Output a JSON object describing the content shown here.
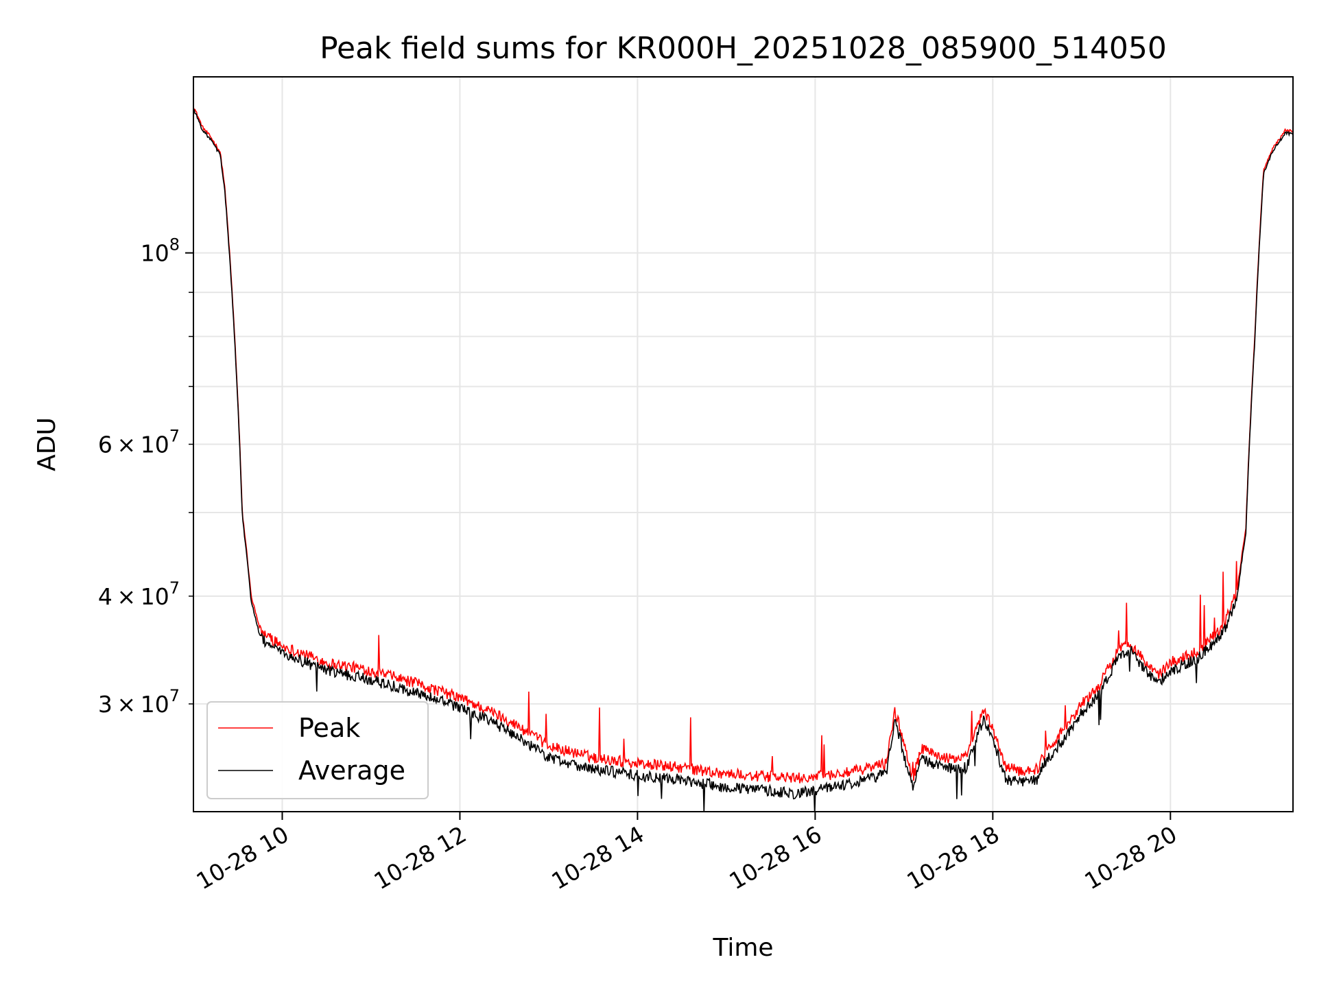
{
  "chart_data": {
    "type": "line",
    "title": "Peak field sums for KR000H_20251028_085900_514050",
    "xlabel": "Time",
    "ylabel": "ADU",
    "yscale": "log",
    "xlim_hours": [
      9.0,
      21.38
    ],
    "ylim": [
      22500000,
      160000000
    ],
    "grid": true,
    "legend_position": "lower-left",
    "x_ticks": [
      {
        "value": 10,
        "label": "10-28 10"
      },
      {
        "value": 12,
        "label": "10-28 12"
      },
      {
        "value": 14,
        "label": "10-28 14"
      },
      {
        "value": 16,
        "label": "10-28 16"
      },
      {
        "value": 18,
        "label": "10-28 18"
      },
      {
        "value": 20,
        "label": "10-28 20"
      }
    ],
    "y_major_ticks": [
      {
        "value": 100000000,
        "base": "10",
        "exp": "8"
      }
    ],
    "y_minor_ticks": [
      {
        "value": 30000000,
        "mant": "3",
        "base": "10",
        "exp": "7"
      },
      {
        "value": 40000000,
        "mant": "4",
        "base": "10",
        "exp": "7"
      },
      {
        "value": 50000000
      },
      {
        "value": 60000000,
        "mant": "6",
        "base": "10",
        "exp": "7"
      },
      {
        "value": 70000000
      },
      {
        "value": 80000000
      },
      {
        "value": 90000000
      }
    ],
    "x_hours": [
      9.0,
      9.1,
      9.2,
      9.3,
      9.35,
      9.45,
      9.55,
      9.65,
      9.75,
      10.0,
      10.5,
      11.0,
      11.5,
      12.0,
      12.5,
      13.0,
      13.5,
      14.0,
      14.5,
      15.0,
      15.5,
      15.8,
      16.0,
      16.4,
      16.8,
      16.9,
      17.0,
      17.1,
      17.2,
      17.5,
      17.7,
      17.9,
      18.0,
      18.15,
      18.3,
      18.5,
      18.6,
      18.8,
      19.0,
      19.2,
      19.4,
      19.55,
      19.7,
      19.85,
      20.0,
      20.3,
      20.6,
      20.75,
      20.85,
      20.95,
      21.05,
      21.15,
      21.3,
      21.38
    ],
    "series": [
      {
        "name": "Peak",
        "color": "#ff0000",
        "values": [
          148000000,
          140000000,
          136000000,
          131000000,
          120000000,
          85000000,
          50000000,
          40000000,
          36500000,
          35000000,
          33500000,
          32800000,
          31700000,
          30500000,
          28900000,
          26800000,
          26000000,
          25600000,
          25300000,
          24900000,
          24700000,
          24600000,
          24700000,
          25000000,
          25600000,
          29500000,
          27000000,
          24600000,
          26600000,
          25900000,
          26000000,
          29500000,
          28000000,
          25300000,
          25100000,
          25200000,
          26500000,
          28000000,
          30000000,
          31500000,
          34500000,
          35300000,
          33700000,
          32300000,
          33500000,
          34500000,
          37000000,
          40500000,
          48000000,
          80000000,
          125000000,
          132000000,
          139000000,
          138000000
        ]
      },
      {
        "name": "Average",
        "color": "#000000",
        "values": [
          147000000,
          139000000,
          135000000,
          130000000,
          119000000,
          84000000,
          49500000,
          39500000,
          35800000,
          34300000,
          32800000,
          32000000,
          30900000,
          29700000,
          28100000,
          26000000,
          25200000,
          24800000,
          24500000,
          24000000,
          23800000,
          23600000,
          23800000,
          24300000,
          24900000,
          28800000,
          26200000,
          23900000,
          25900000,
          25200000,
          25300000,
          28900000,
          27200000,
          24500000,
          24400000,
          24500000,
          25800000,
          27300000,
          29300000,
          30800000,
          33800000,
          34600000,
          33000000,
          31600000,
          32800000,
          33800000,
          36300000,
          39800000,
          47500000,
          79000000,
          124000000,
          131000000,
          138000000,
          137000000
        ]
      }
    ]
  }
}
